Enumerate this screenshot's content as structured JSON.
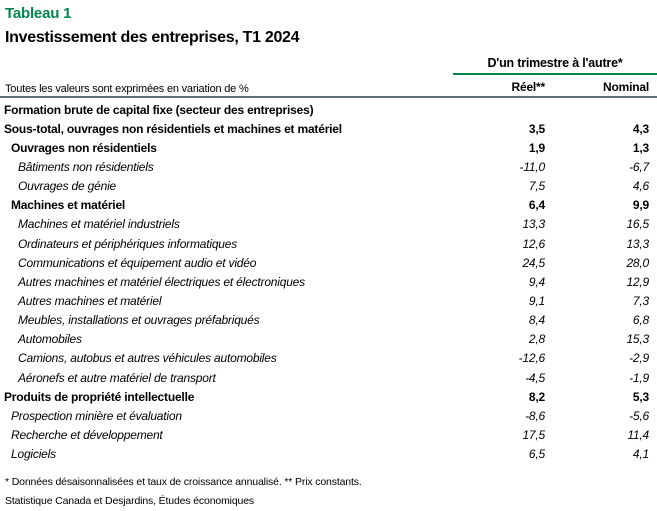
{
  "page": {
    "title_label": "Tableau 1",
    "subtitle": "Investissement des entreprises, T1 2024"
  },
  "table": {
    "unit_note": "Toutes les valeurs sont exprimées en variation de %",
    "column_group": "D'un trimestre à l'autre*",
    "columns": [
      "Réel**",
      "Nominal"
    ],
    "rows": [
      {
        "label": "Formation brute de capital fixe (secteur des entreprises)",
        "style": "bold",
        "indent": 0,
        "reel": "",
        "nominal": ""
      },
      {
        "label": "Sous-total, ouvrages non résidentiels et machines et matériel",
        "style": "bold",
        "indent": 0,
        "reel": "3,5",
        "nominal": "4,3"
      },
      {
        "label": "Ouvrages non résidentiels",
        "style": "bold",
        "indent": 1,
        "reel": "1,9",
        "nominal": "1,3"
      },
      {
        "label": "Bâtiments non résidentiels",
        "style": "italic",
        "indent": 2,
        "reel": "-11,0",
        "nominal": "-6,7"
      },
      {
        "label": "Ouvrages de génie",
        "style": "italic",
        "indent": 2,
        "reel": "7,5",
        "nominal": "4,6"
      },
      {
        "label": "Machines et matériel",
        "style": "bold",
        "indent": 1,
        "reel": "6,4",
        "nominal": "9,9"
      },
      {
        "label": "Machines et matériel industriels",
        "style": "italic",
        "indent": 2,
        "reel": "13,3",
        "nominal": "16,5"
      },
      {
        "label": "Ordinateurs et périphériques informatiques",
        "style": "italic",
        "indent": 2,
        "reel": "12,6",
        "nominal": "13,3"
      },
      {
        "label": "Communications et équipement audio et vidéo",
        "style": "italic",
        "indent": 2,
        "reel": "24,5",
        "nominal": "28,0"
      },
      {
        "label": "Autres machines et matériel électriques et électroniques",
        "style": "italic",
        "indent": 2,
        "reel": "9,4",
        "nominal": "12,9"
      },
      {
        "label": "Autres machines et matériel",
        "style": "italic",
        "indent": 2,
        "reel": "9,1",
        "nominal": "7,3"
      },
      {
        "label": "Meubles, installations et ouvrages préfabriqués",
        "style": "italic",
        "indent": 2,
        "reel": "8,4",
        "nominal": "6,8"
      },
      {
        "label": "Automobiles",
        "style": "italic",
        "indent": 2,
        "reel": "2,8",
        "nominal": "15,3"
      },
      {
        "label": "Camions, autobus et autres véhicules automobiles",
        "style": "italic",
        "indent": 2,
        "reel": "-12,6",
        "nominal": "-2,9"
      },
      {
        "label": "Aéronefs et autre matériel de transport",
        "style": "italic",
        "indent": 2,
        "reel": "-4,5",
        "nominal": "-1,9"
      },
      {
        "label": "Produits de propriété intellectuelle",
        "style": "bold",
        "indent": 0,
        "reel": "8,2",
        "nominal": "5,3"
      },
      {
        "label": "Prospection minière et évaluation",
        "style": "italic",
        "indent": 1,
        "reel": "-8,6",
        "nominal": "-5,6"
      },
      {
        "label": "Recherche et développement",
        "style": "italic",
        "indent": 1,
        "reel": "17,5",
        "nominal": "11,4"
      },
      {
        "label": "Logiciels",
        "style": "italic",
        "indent": 1,
        "reel": "6,5",
        "nominal": "4,1"
      }
    ]
  },
  "footnotes": {
    "note1": "* Données désaisonnalisées et taux de croissance annualisé. ** Prix constants.",
    "source": "Statistique Canada et Desjardins, Études économiques"
  },
  "colors": {
    "accent_green": "#00874E",
    "rule_dark": "#5E727C",
    "text": "#000000"
  }
}
